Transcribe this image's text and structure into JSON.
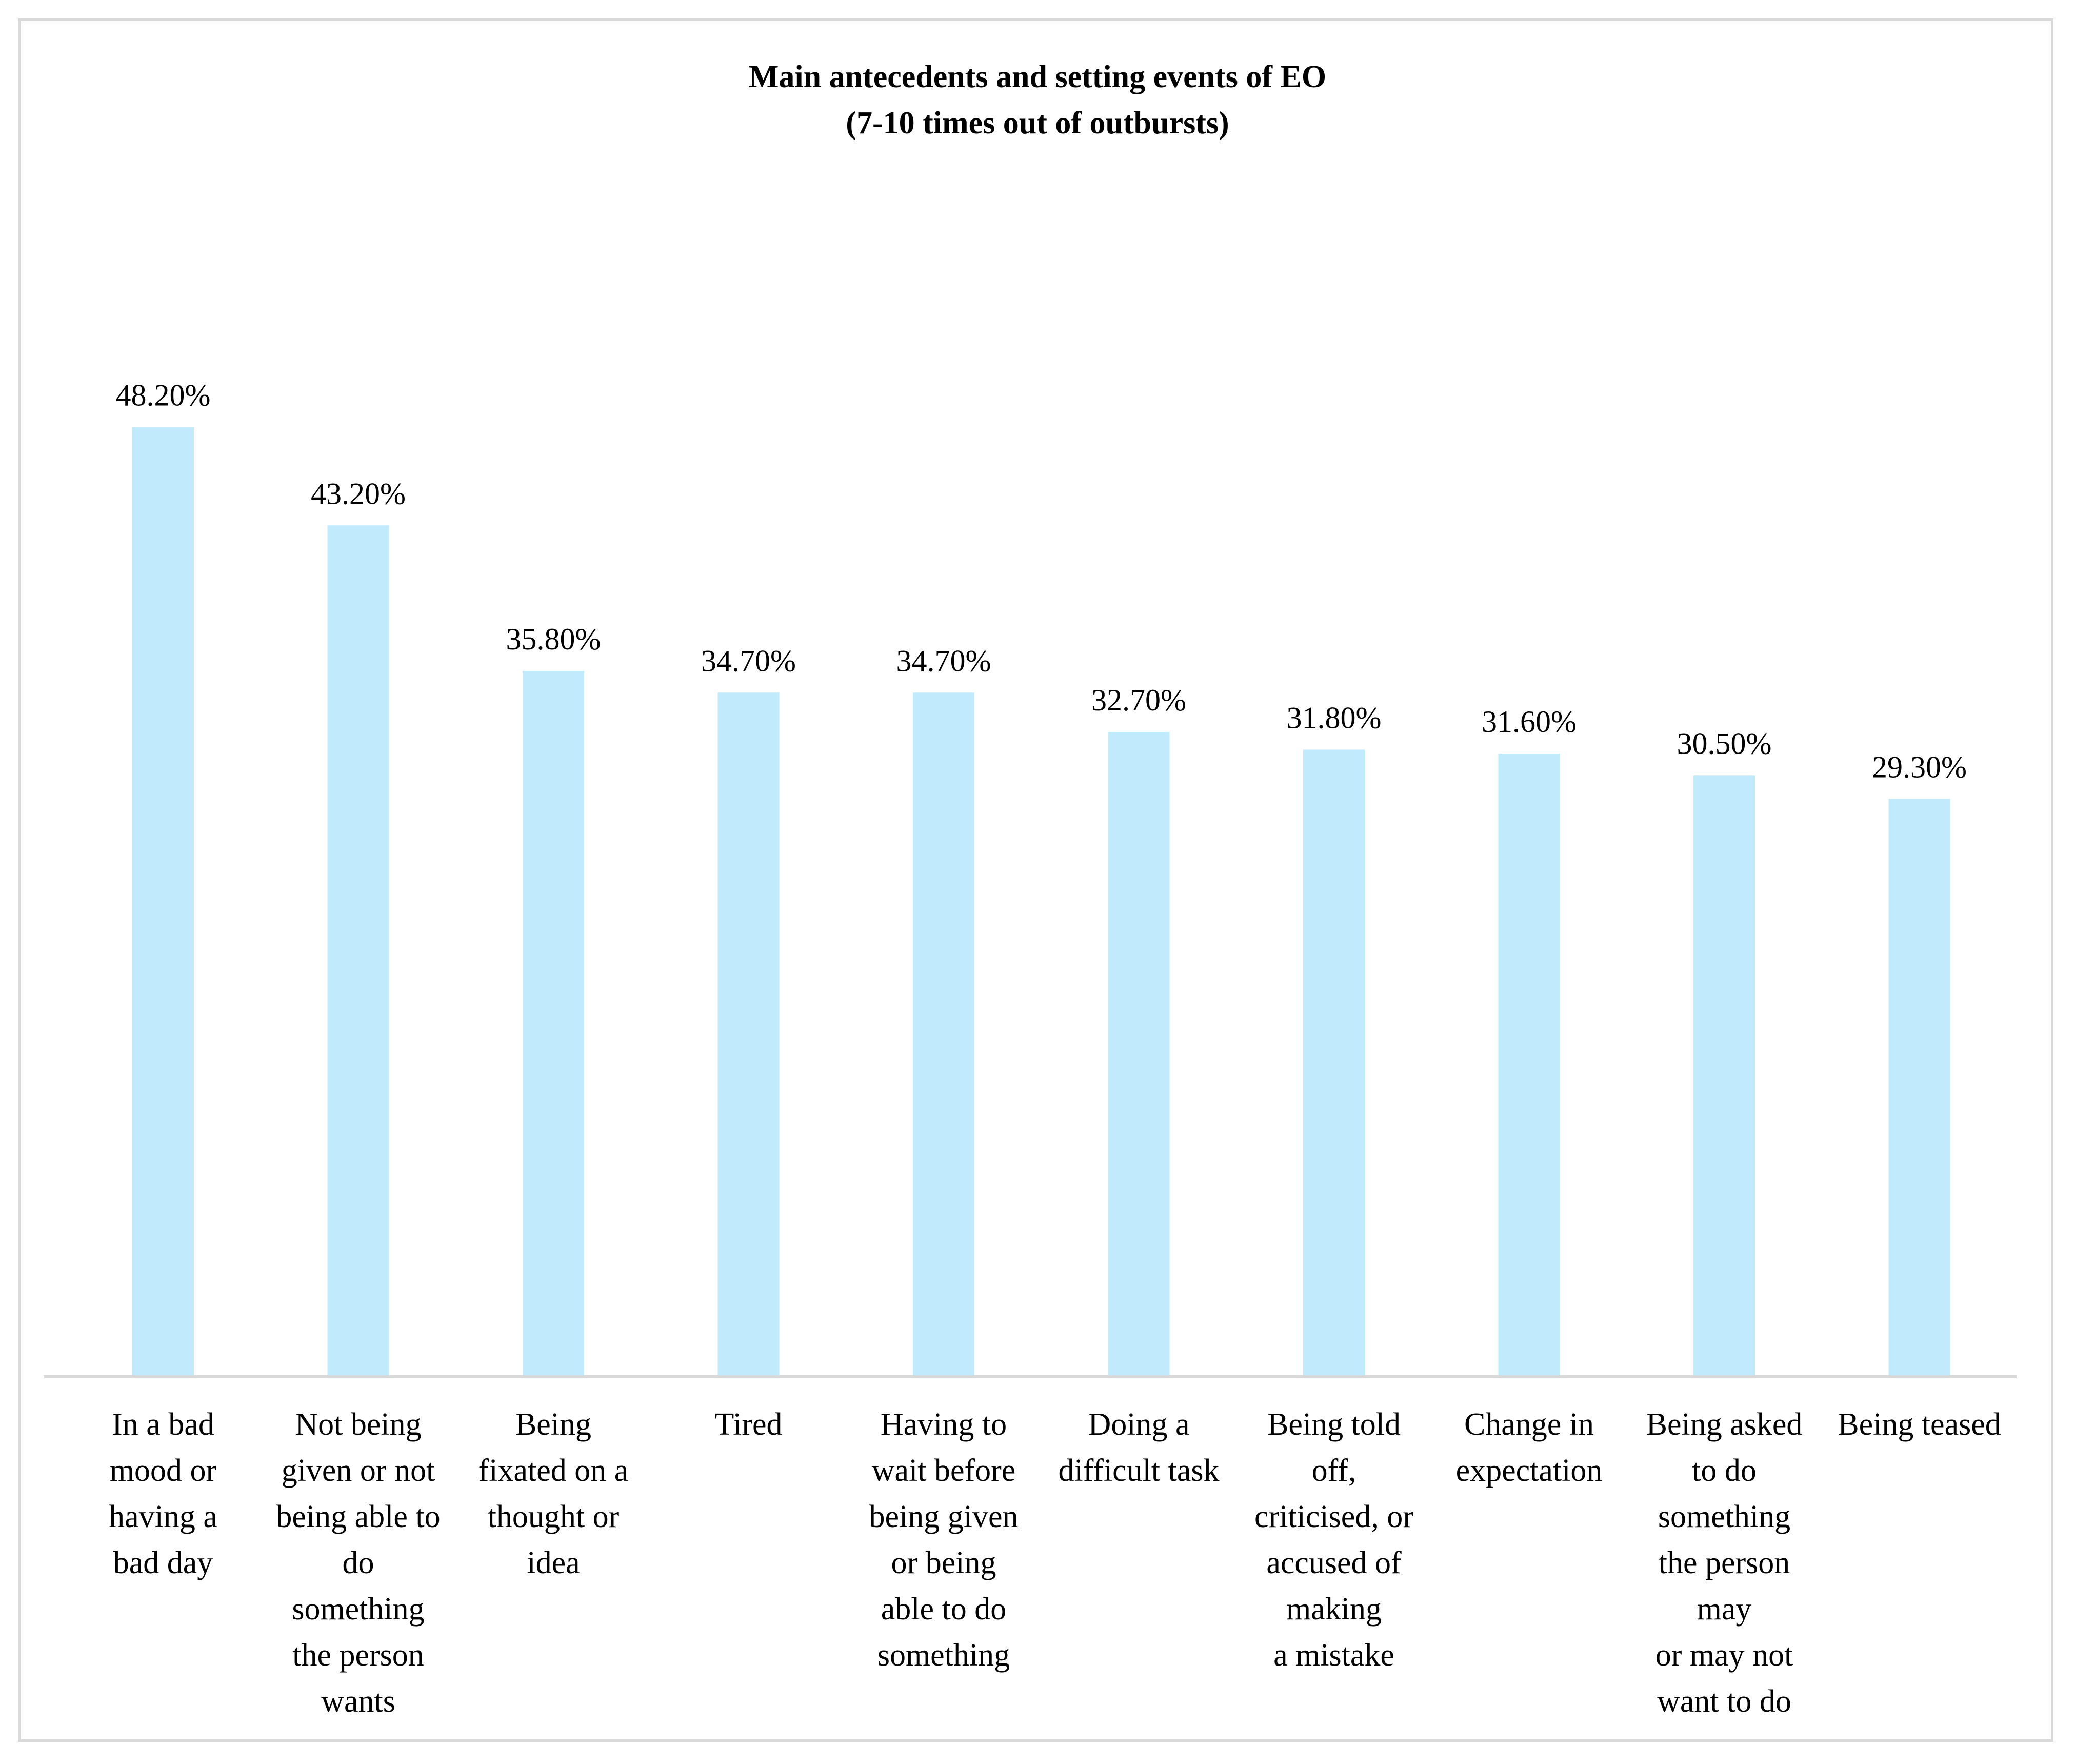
{
  "chart_data": {
    "type": "bar",
    "title_lines": [
      "Main antecedents and setting events of EO",
      "(7-10 times out of outbursts)"
    ],
    "categories": [
      "In a bad\nmood or\nhaving a\nbad day",
      "Not being\ngiven or not\nbeing able to\ndo\nsomething\nthe person\nwants",
      "Being\nfixated on a\nthought or\nidea",
      "Tired",
      "Having to\nwait before\nbeing given\nor being\nable to do\nsomething",
      "Doing a\ndifficult task",
      "Being told\noff,\ncriticised, or\naccused of\nmaking\na mistake",
      "Change in\nexpectation",
      "Being asked\nto do\nsomething\nthe person\nmay\nor may not\nwant to do",
      "Being teased"
    ],
    "values": [
      48.2,
      43.2,
      35.8,
      34.7,
      34.7,
      32.7,
      31.8,
      31.6,
      30.5,
      29.3
    ],
    "data_labels": [
      "48.20%",
      "43.20%",
      "35.80%",
      "34.70%",
      "34.70%",
      "32.70%",
      "31.80%",
      "31.60%",
      "30.50%",
      "29.30%"
    ],
    "ylim": [
      0,
      70
    ],
    "grid": false,
    "legend": "none",
    "bar_color": "#c1eafc",
    "axis_color": "#d9d9d9"
  }
}
